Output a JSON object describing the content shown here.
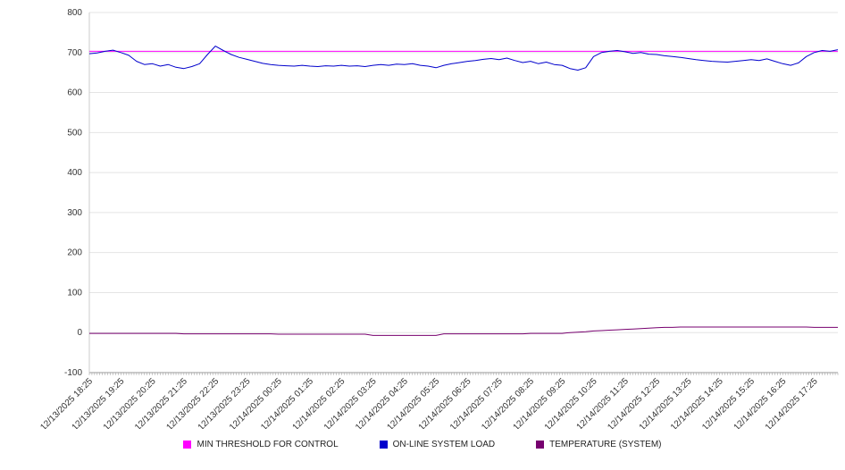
{
  "legend": {
    "items": [
      {
        "label": "MIN THRESHOLD FOR CONTROL",
        "color": "#ff00ff"
      },
      {
        "label": "ON-LINE SYSTEM LOAD",
        "color": "#0000cc"
      },
      {
        "label": "TEMPERATURE (SYSTEM)",
        "color": "#77006f"
      }
    ]
  },
  "chart_data": {
    "type": "line",
    "title": "",
    "xlabel": "",
    "ylabel": "",
    "ylim": [
      -100,
      800
    ],
    "y_ticks": [
      800,
      700,
      600,
      500,
      400,
      300,
      200,
      100,
      0,
      -100
    ],
    "grid": "horizontal",
    "legend_position": "bottom",
    "x_points_per_label": 4,
    "x_tick_labels": [
      "12/13/2025 18:25",
      "12/13/2025 19:25",
      "12/13/2025 20:25",
      "12/13/2025 21:25",
      "12/13/2025 22:25",
      "12/13/2025 23:25",
      "12/14/2025 00:25",
      "12/14/2025 01:25",
      "12/14/2025 02:25",
      "12/14/2025 03:25",
      "12/14/2025 04:25",
      "12/14/2025 05:25",
      "12/14/2025 06:25",
      "12/14/2025 07:25",
      "12/14/2025 08:25",
      "12/14/2025 09:25",
      "12/14/2025 10:25",
      "12/14/2025 11:25",
      "12/14/2025 12:25",
      "12/14/2025 13:25",
      "12/14/2025 14:25",
      "12/14/2025 15:25",
      "12/14/2025 16:25",
      "12/14/2025 17:25"
    ],
    "series": [
      {
        "name": "MIN THRESHOLD FOR CONTROL",
        "color": "#ff00ff",
        "constant_value": 703
      },
      {
        "name": "ON-LINE SYSTEM LOAD",
        "color": "#0000cc",
        "values": [
          697,
          699,
          703,
          706,
          700,
          693,
          678,
          670,
          672,
          666,
          670,
          663,
          660,
          665,
          672,
          695,
          716,
          705,
          695,
          688,
          683,
          678,
          673,
          670,
          668,
          667,
          666,
          668,
          666,
          665,
          667,
          666,
          668,
          666,
          667,
          665,
          668,
          670,
          668,
          671,
          670,
          672,
          668,
          666,
          662,
          668,
          672,
          675,
          678,
          680,
          683,
          685,
          682,
          686,
          680,
          675,
          678,
          672,
          676,
          670,
          668,
          660,
          656,
          662,
          690,
          700,
          703,
          705,
          702,
          698,
          700,
          696,
          695,
          692,
          690,
          688,
          685,
          682,
          680,
          678,
          677,
          676,
          678,
          680,
          682,
          680,
          684,
          678,
          672,
          668,
          674,
          690,
          700,
          705,
          703,
          707
        ]
      },
      {
        "name": "TEMPERATURE (SYSTEM)",
        "color": "#77006f",
        "values": [
          -2,
          -2,
          -2,
          -2,
          -2,
          -2,
          -2,
          -2,
          -2,
          -2,
          -2,
          -2,
          -3,
          -3,
          -3,
          -3,
          -3,
          -3,
          -3,
          -3,
          -3,
          -3,
          -3,
          -3,
          -4,
          -4,
          -4,
          -4,
          -4,
          -4,
          -4,
          -4,
          -4,
          -4,
          -4,
          -4,
          -7,
          -7,
          -7,
          -7,
          -7,
          -7,
          -7,
          -7,
          -7,
          -3,
          -3,
          -3,
          -3,
          -3,
          -3,
          -3,
          -3,
          -3,
          -3,
          -3,
          -2,
          -2,
          -2,
          -2,
          -2,
          0,
          1,
          2,
          4,
          5,
          6,
          7,
          8,
          9,
          10,
          11,
          12,
          13,
          13,
          14,
          14,
          14,
          14,
          14,
          14,
          14,
          14,
          14,
          14,
          14,
          14,
          14,
          14,
          14,
          14,
          14,
          13,
          13,
          13,
          13
        ]
      }
    ]
  }
}
